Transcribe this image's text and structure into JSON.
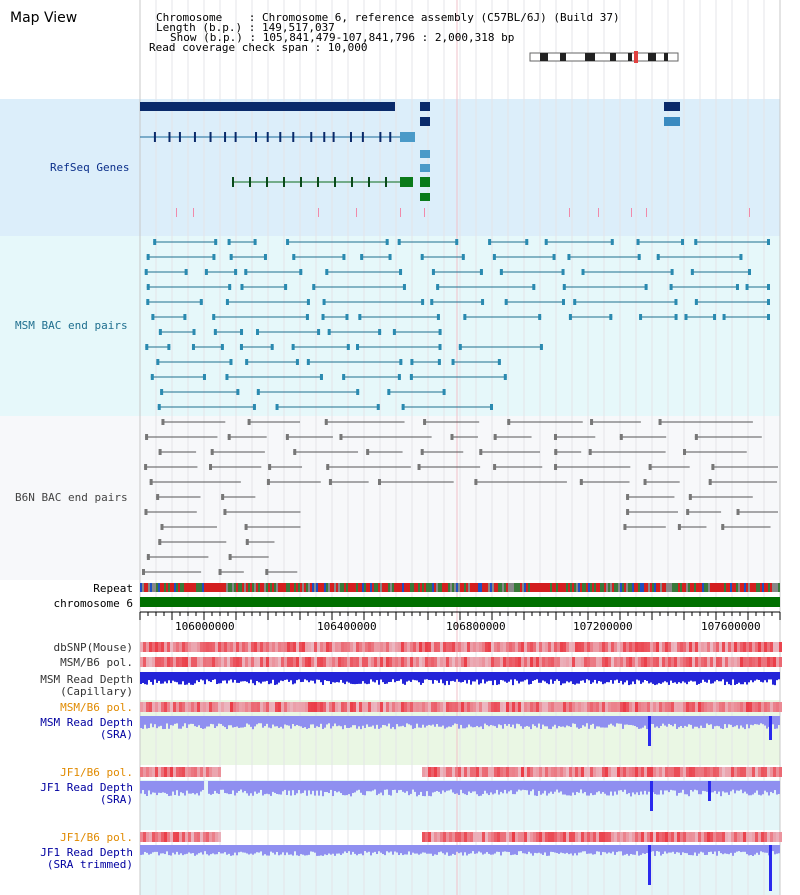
{
  "view_title": "Map View",
  "info": {
    "chromosome": "Chromosome    : Chromosome 6, reference assembly (C57BL/6J) (Build 37)",
    "length": "Length (b.p.) : 149,517,037",
    "show": "Show (b.p.) : 105,841,479-107,841,796 : 2,000,318 bp",
    "coverage": "Read coverage check span : 10,000"
  },
  "tracks": {
    "refseq": "RefSeq Genes",
    "msm_bac": "MSM BAC end pairs",
    "b6n_bac": "B6N BAC end pairs",
    "repeat": "Repeat",
    "chromosome": "chromosome 6",
    "dbsnp": "dbSNP(Mouse)",
    "msm_pol": "MSM/B6 pol.",
    "msm_depth_cap_1": "MSM Read Depth",
    "msm_depth_cap_2": "(Capillary)",
    "msm_pol_sra": "MSM/B6 pol.",
    "msm_depth_sra_1": "MSM Read Depth",
    "msm_depth_sra_2": "(SRA)",
    "jf1_pol_1": "JF1/B6 pol.",
    "jf1_depth_1": "JF1 Read Depth",
    "jf1_depth_1b": "(SRA)",
    "jf1_pol_2": "JF1/B6 pol.",
    "jf1_depth_2": "JF1 Read Depth",
    "jf1_depth_2b": "(SRA trimmed)"
  },
  "axis": {
    "ticks": [
      "106000000",
      "106400000",
      "106800000",
      "107200000",
      "107600000"
    ]
  },
  "colors": {
    "refseq_bg": "#dceefa",
    "msm_bg": "#e6f8fa",
    "b6n_bg": "#f7f8fa",
    "chrom_green": "#007000",
    "depth_blue": "#2a2aee",
    "depth_light": "#8f8ff0",
    "pol_red": "#e8342f",
    "orange_label": "#e08a00",
    "navy_label": "#0000a0",
    "teal_label": "#205a8a"
  }
}
